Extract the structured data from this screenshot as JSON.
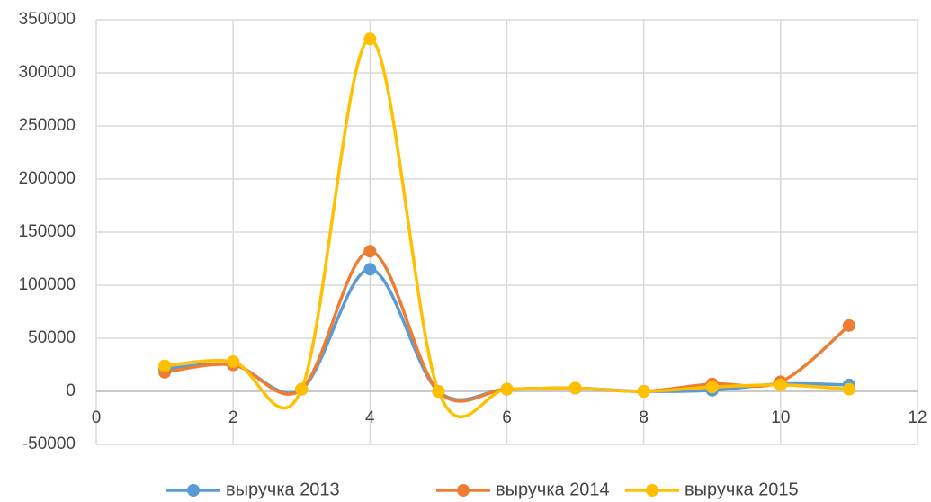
{
  "chart_data": {
    "type": "scatter",
    "x": [
      1,
      2,
      3,
      4,
      5,
      6,
      7,
      8,
      9,
      10,
      11
    ],
    "series": [
      {
        "name": "выручка 2013",
        "color": "#5b9bd5",
        "values": [
          21000,
          25000,
          2000,
          115000,
          0,
          2000,
          3000,
          0,
          1000,
          7000,
          6000
        ]
      },
      {
        "name": "выручка 2014",
        "color": "#ed7d31",
        "values": [
          18000,
          25000,
          2000,
          132000,
          0,
          2000,
          3000,
          0,
          7000,
          9000,
          62000
        ]
      },
      {
        "name": "выручка 2015",
        "color": "#ffc000",
        "values": [
          24000,
          28000,
          2000,
          332000,
          0,
          2000,
          3000,
          0,
          4000,
          6000,
          2000
        ]
      }
    ],
    "xlim": [
      0,
      12
    ],
    "xticks": [
      0,
      2,
      4,
      6,
      8,
      10,
      12
    ],
    "ylim": [
      -50000,
      350000
    ],
    "yticks": [
      -50000,
      0,
      50000,
      100000,
      150000,
      200000,
      250000,
      300000,
      350000
    ],
    "grid": true,
    "smooth": true,
    "legend": "bottom"
  }
}
